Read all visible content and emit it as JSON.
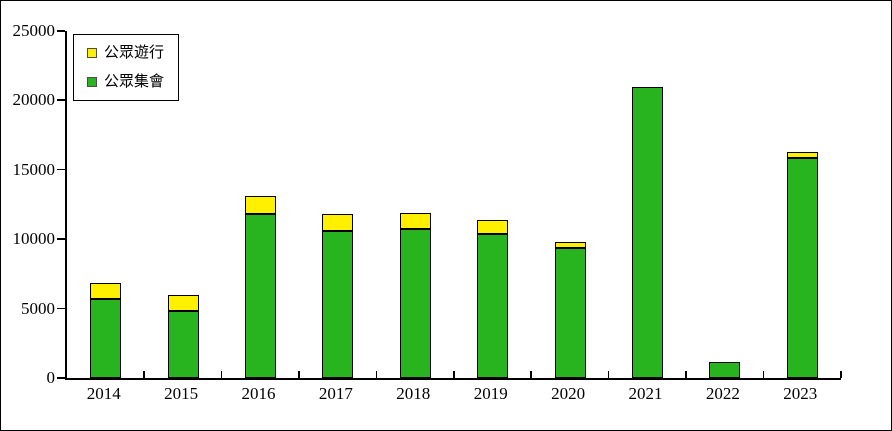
{
  "chart_data": {
    "type": "bar",
    "stacked": true,
    "title": "",
    "xlabel": "",
    "ylabel": "",
    "categories": [
      "2014",
      "2015",
      "2016",
      "2017",
      "2018",
      "2019",
      "2020",
      "2021",
      "2022",
      "2023"
    ],
    "series": [
      {
        "name": "公眾遊行",
        "color": "#FFF000",
        "stack_index": 1,
        "values": [
          1150,
          1150,
          1300,
          1200,
          1150,
          1000,
          450,
          0,
          0,
          450
        ]
      },
      {
        "name": "公眾集會",
        "color": "#28B41E",
        "stack_index": 0,
        "values": [
          5700,
          4850,
          11850,
          10600,
          10750,
          10400,
          9400,
          20950,
          1150,
          15850
        ]
      }
    ],
    "totals": [
      6850,
      6000,
      13150,
      11800,
      11900,
      11400,
      9850,
      20950,
      1150,
      16300
    ],
    "ylim": [
      0,
      25000
    ],
    "yticks": [
      0,
      5000,
      10000,
      15000,
      20000,
      25000
    ],
    "grid": false,
    "legend_position": "top-left",
    "axis_color": "#000000",
    "bar_border_color": "#000000",
    "background": "#FFFFFF"
  }
}
